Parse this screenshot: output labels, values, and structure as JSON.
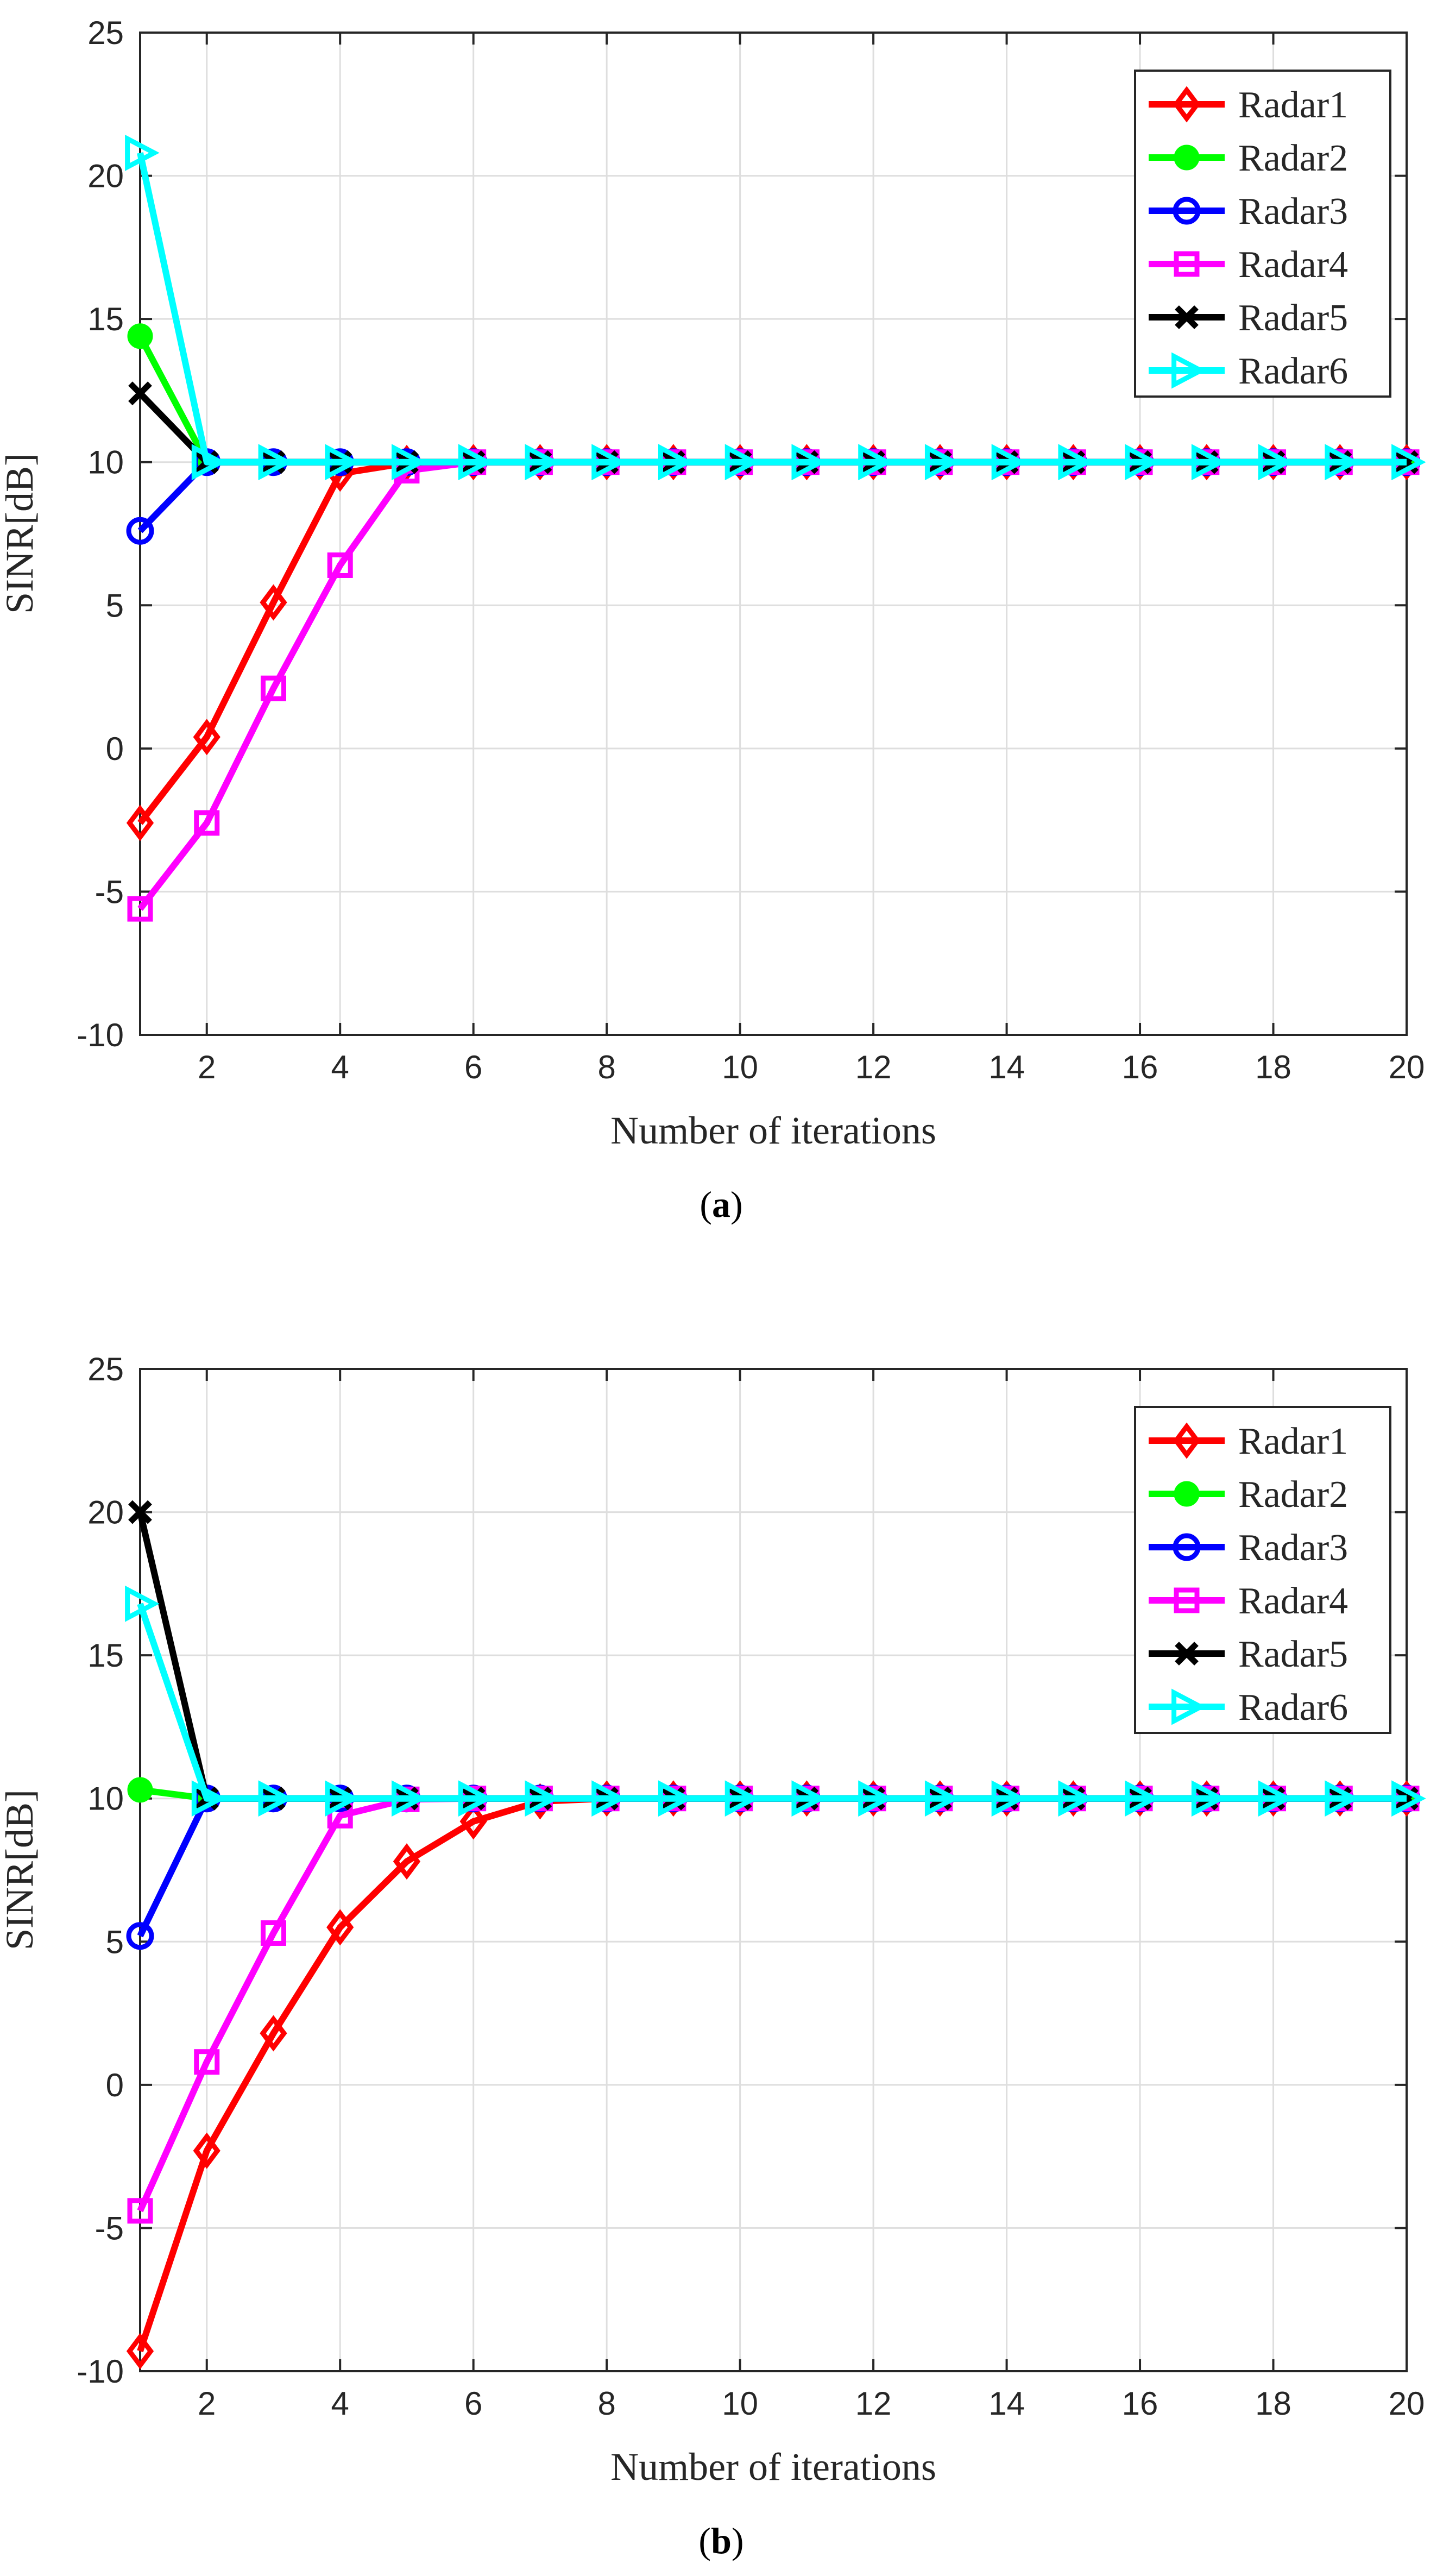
{
  "figure": {
    "panels": [
      {
        "caption_open": "(",
        "caption_letter": "a",
        "caption_close": ")"
      },
      {
        "caption_open": "(",
        "caption_letter": "b",
        "caption_close": ")"
      }
    ]
  },
  "colors": {
    "Radar1": "#ff0000",
    "Radar2": "#00ff00",
    "Radar3": "#0000ff",
    "Radar4": "#ff00ff",
    "Radar5": "#000000",
    "Radar6": "#00ffff",
    "grid": "#dedede",
    "axis": "#262626"
  },
  "chart_data": [
    {
      "type": "line",
      "title": "",
      "xlabel": "Number of iterations",
      "ylabel": "SINR[dB]",
      "xlim": [
        1,
        20
      ],
      "ylim": [
        -10,
        25
      ],
      "xticks": [
        2,
        4,
        6,
        8,
        10,
        12,
        14,
        16,
        18,
        20
      ],
      "yticks": [
        -10,
        -5,
        0,
        5,
        10,
        15,
        20,
        25
      ],
      "grid": true,
      "legend_position": "top-right",
      "x": [
        1,
        2,
        3,
        4,
        5,
        6,
        7,
        8,
        9,
        10,
        11,
        12,
        13,
        14,
        15,
        16,
        17,
        18,
        19,
        20
      ],
      "series": [
        {
          "name": "Radar1",
          "marker": "diamond",
          "values": [
            -2.6,
            0.4,
            5.1,
            9.6,
            9.97,
            10,
            10,
            10,
            10,
            10,
            10,
            10,
            10,
            10,
            10,
            10,
            10,
            10,
            10,
            10
          ]
        },
        {
          "name": "Radar2",
          "marker": "circle-filled",
          "values": [
            14.4,
            10,
            10,
            10,
            10,
            10,
            10,
            10,
            10,
            10,
            10,
            10,
            10,
            10,
            10,
            10,
            10,
            10,
            10,
            10
          ]
        },
        {
          "name": "Radar3",
          "marker": "circle",
          "values": [
            7.6,
            10,
            10,
            10,
            10,
            10,
            10,
            10,
            10,
            10,
            10,
            10,
            10,
            10,
            10,
            10,
            10,
            10,
            10,
            10
          ]
        },
        {
          "name": "Radar4",
          "marker": "square",
          "values": [
            -5.6,
            -2.6,
            2.1,
            6.4,
            9.7,
            10,
            10,
            10,
            10,
            10,
            10,
            10,
            10,
            10,
            10,
            10,
            10,
            10,
            10,
            10
          ]
        },
        {
          "name": "Radar5",
          "marker": "x",
          "values": [
            12.4,
            10,
            10,
            10,
            10,
            10,
            10,
            10,
            10,
            10,
            10,
            10,
            10,
            10,
            10,
            10,
            10,
            10,
            10,
            10
          ]
        },
        {
          "name": "Radar6",
          "marker": "triangle-right",
          "values": [
            20.8,
            10,
            10,
            10,
            10,
            10,
            10,
            10,
            10,
            10,
            10,
            10,
            10,
            10,
            10,
            10,
            10,
            10,
            10,
            10
          ]
        }
      ]
    },
    {
      "type": "line",
      "title": "",
      "xlabel": "Number of iterations",
      "ylabel": "SINR[dB]",
      "xlim": [
        1,
        20
      ],
      "ylim": [
        -10,
        25
      ],
      "xticks": [
        2,
        4,
        6,
        8,
        10,
        12,
        14,
        16,
        18,
        20
      ],
      "yticks": [
        -10,
        -5,
        0,
        5,
        10,
        15,
        20,
        25
      ],
      "grid": true,
      "legend_position": "top-right",
      "x": [
        1,
        2,
        3,
        4,
        5,
        6,
        7,
        8,
        9,
        10,
        11,
        12,
        13,
        14,
        15,
        16,
        17,
        18,
        19,
        20
      ],
      "series": [
        {
          "name": "Radar1",
          "marker": "diamond",
          "values": [
            -9.3,
            -2.3,
            1.8,
            5.5,
            7.8,
            9.2,
            9.9,
            10,
            10,
            10,
            10,
            10,
            10,
            10,
            10,
            10,
            10,
            10,
            10,
            10
          ]
        },
        {
          "name": "Radar2",
          "marker": "circle-filled",
          "values": [
            10.3,
            10,
            10,
            10,
            10,
            10,
            10,
            10,
            10,
            10,
            10,
            10,
            10,
            10,
            10,
            10,
            10,
            10,
            10,
            10
          ]
        },
        {
          "name": "Radar3",
          "marker": "circle",
          "values": [
            5.2,
            10,
            10,
            10,
            10,
            10,
            10,
            10,
            10,
            10,
            10,
            10,
            10,
            10,
            10,
            10,
            10,
            10,
            10,
            10
          ]
        },
        {
          "name": "Radar4",
          "marker": "square",
          "values": [
            -4.4,
            0.8,
            5.3,
            9.4,
            9.97,
            10,
            10,
            10,
            10,
            10,
            10,
            10,
            10,
            10,
            10,
            10,
            10,
            10,
            10,
            10
          ]
        },
        {
          "name": "Radar5",
          "marker": "x",
          "values": [
            20,
            10,
            10,
            10,
            10,
            10,
            10,
            10,
            10,
            10,
            10,
            10,
            10,
            10,
            10,
            10,
            10,
            10,
            10,
            10
          ]
        },
        {
          "name": "Radar6",
          "marker": "triangle-right",
          "values": [
            16.8,
            10,
            10,
            10,
            10,
            10,
            10,
            10,
            10,
            10,
            10,
            10,
            10,
            10,
            10,
            10,
            10,
            10,
            10,
            10
          ]
        }
      ]
    }
  ]
}
